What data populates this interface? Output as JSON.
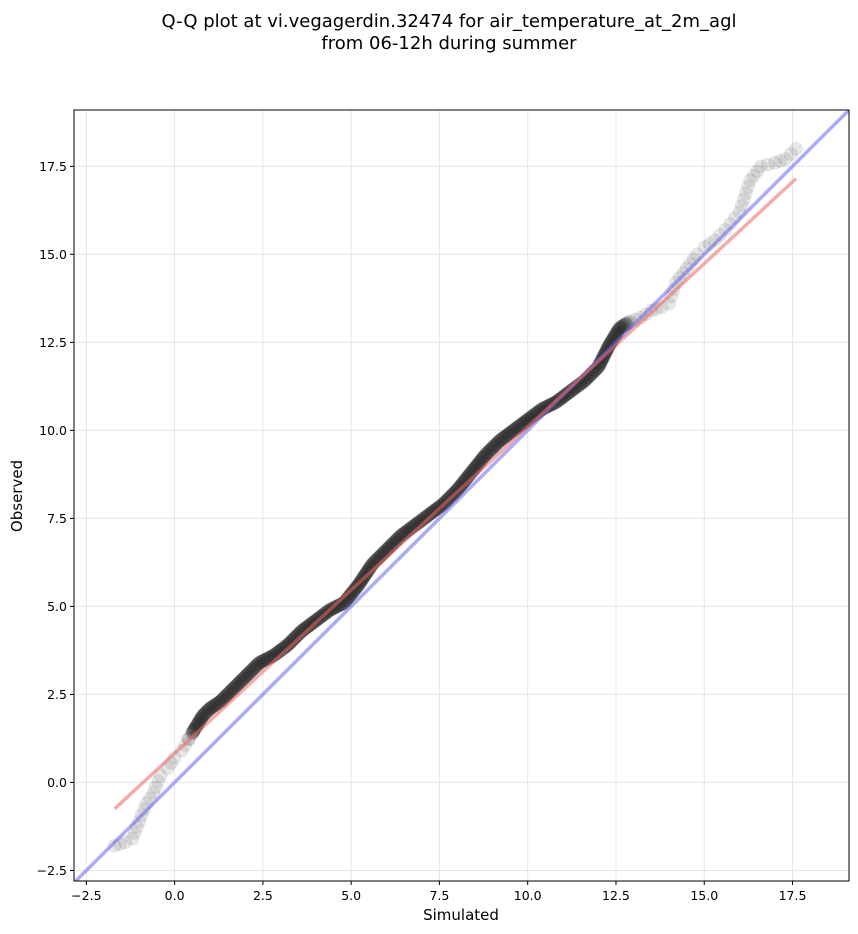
{
  "chart_data": {
    "type": "scatter",
    "title": "Q-Q plot at vi.vegagerdin.32474 for air_temperature_at_2m_agl",
    "subtitle": "from 06-12h during summer",
    "xlabel": "Simulated",
    "ylabel": "Observed",
    "xlim": [
      -2.85,
      19.1
    ],
    "ylim": [
      -2.8,
      19.1
    ],
    "xticks": [
      -2.5,
      0.0,
      2.5,
      5.0,
      7.5,
      10.0,
      12.5,
      15.0,
      17.5
    ],
    "yticks": [
      -2.5,
      0.0,
      2.5,
      5.0,
      7.5,
      10.0,
      12.5,
      15.0,
      17.5
    ],
    "xtick_labels": [
      "−2.5",
      "0.0",
      "2.5",
      "5.0",
      "7.5",
      "10.0",
      "12.5",
      "15.0",
      "17.5"
    ],
    "ytick_labels": [
      "−2.5",
      "0.0",
      "2.5",
      "5.0",
      "7.5",
      "10.0",
      "12.5",
      "15.0",
      "17.5"
    ],
    "grid": true,
    "quantile_curve": {
      "color": "#222222",
      "x": [
        -1.7,
        -1.4,
        -1.2,
        -1.0,
        -0.8,
        -0.6,
        -0.4,
        -0.2,
        0.0,
        0.2,
        0.5,
        0.8,
        1.0,
        1.3,
        1.6,
        2.0,
        2.4,
        2.8,
        3.2,
        3.6,
        4.0,
        4.4,
        4.8,
        5.2,
        5.6,
        6.0,
        6.4,
        6.8,
        7.2,
        7.6,
        8.0,
        8.4,
        8.8,
        9.2,
        9.6,
        10.0,
        10.4,
        10.8,
        11.2,
        11.6,
        12.0,
        12.3,
        12.6,
        12.9,
        13.2,
        13.5,
        13.8,
        14.0,
        14.2,
        14.5,
        14.8,
        15.0,
        15.3,
        15.6,
        16.0,
        16.3,
        16.6,
        17.0,
        17.3,
        17.6
      ],
      "y": [
        -1.8,
        -1.7,
        -1.6,
        -1.1,
        -0.6,
        -0.3,
        0.2,
        0.4,
        0.7,
        0.9,
        1.4,
        1.9,
        2.1,
        2.3,
        2.6,
        3.0,
        3.4,
        3.6,
        3.9,
        4.3,
        4.6,
        4.9,
        5.1,
        5.6,
        6.2,
        6.6,
        7.0,
        7.3,
        7.6,
        7.9,
        8.3,
        8.8,
        9.3,
        9.7,
        10.0,
        10.3,
        10.6,
        10.8,
        11.1,
        11.4,
        11.8,
        12.4,
        12.9,
        13.1,
        13.2,
        13.4,
        13.5,
        13.6,
        14.2,
        14.6,
        15.0,
        15.2,
        15.4,
        15.7,
        16.2,
        17.1,
        17.5,
        17.6,
        17.7,
        18.0
      ]
    },
    "reference_line": {
      "name": "1:1",
      "color": "#6666ee",
      "x": [
        -2.85,
        19.1
      ],
      "y": [
        -2.85,
        19.1
      ]
    },
    "fit_line": {
      "color": "#ee6666",
      "x": [
        -1.7,
        17.6
      ],
      "y": [
        -0.75,
        17.15
      ]
    }
  }
}
